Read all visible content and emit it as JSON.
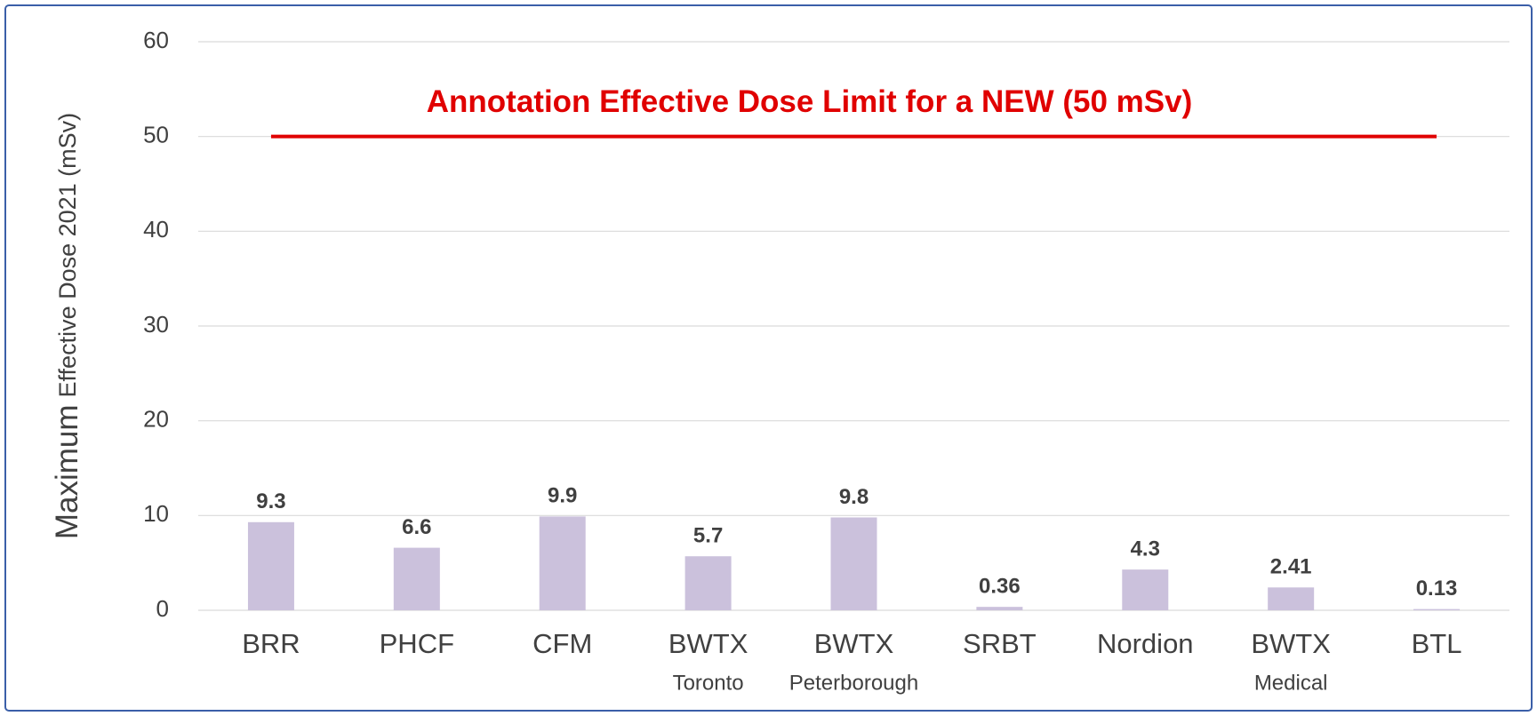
{
  "chart_data": {
    "type": "bar",
    "ylabel_parts": [
      "Maximum",
      "Effective Dose 2021 (mSv)"
    ],
    "categories": [
      "BRR",
      "PHCF",
      "CFM",
      "BWTX",
      "BWTX",
      "SRBT",
      "Nordion",
      "BWTX",
      "BTL"
    ],
    "category_sublabels": [
      null,
      null,
      null,
      "Toronto",
      "Peterborough",
      null,
      null,
      "Medical",
      null
    ],
    "values": [
      9.3,
      6.6,
      9.9,
      5.7,
      9.8,
      0.36,
      4.3,
      2.41,
      0.13
    ],
    "color": "#cbc1dc",
    "ylim": [
      0,
      60
    ],
    "yticks": [
      0,
      10,
      20,
      30,
      40,
      50,
      60
    ],
    "grid": true,
    "reference_line": {
      "value": 50,
      "label": "Annotation Effective Dose Limit for a NEW (50 mSv)",
      "color": "#e00000"
    }
  }
}
